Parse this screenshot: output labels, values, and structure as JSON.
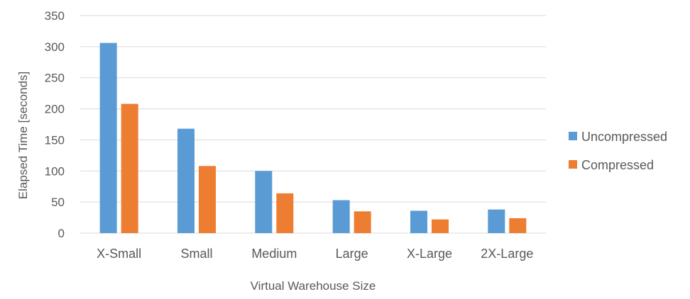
{
  "chart_data": {
    "type": "bar",
    "title": "",
    "xlabel": "Virtual Warehouse Size",
    "ylabel": "Elapsed Time [seconds]",
    "categories": [
      "X-Small",
      "Small",
      "Medium",
      "Large",
      "X-Large",
      "2X-Large"
    ],
    "series": [
      {
        "name": "Uncompressed",
        "color": "#5b9bd5",
        "values": [
          306,
          168,
          100,
          53,
          36,
          38
        ]
      },
      {
        "name": "Compressed",
        "color": "#ed7d31",
        "values": [
          208,
          108,
          64,
          35,
          22,
          24
        ]
      }
    ],
    "ylim": [
      0,
      350
    ],
    "yticks": [
      0,
      50,
      100,
      150,
      200,
      250,
      300,
      350
    ],
    "grid": true,
    "legend_position": "right"
  }
}
